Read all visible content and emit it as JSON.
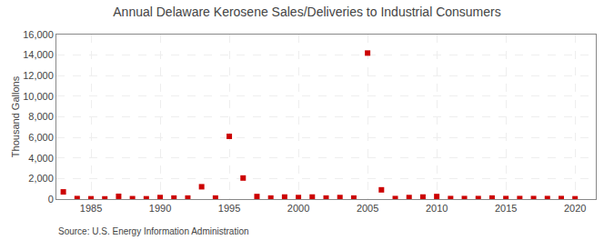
{
  "chart_data": {
    "type": "scatter",
    "title": "Annual Delaware Kerosene Sales/Deliveries to Industrial Consumers",
    "ylabel": "Thousand Gallons",
    "annotations": [
      "Source: U.S. Energy Information Administration"
    ],
    "x": [
      1983,
      1984,
      1985,
      1986,
      1987,
      1988,
      1989,
      1990,
      1991,
      1992,
      1993,
      1994,
      1995,
      1996,
      1997,
      1998,
      1999,
      2000,
      2001,
      2002,
      2003,
      2004,
      2005,
      2006,
      2007,
      2008,
      2009,
      2010,
      2011,
      2012,
      2013,
      2014,
      2015,
      2016,
      2017,
      2018,
      2019,
      2020
    ],
    "values": [
      700,
      50,
      30,
      20,
      270,
      40,
      30,
      150,
      100,
      100,
      1200,
      100,
      6100,
      2050,
      250,
      100,
      200,
      150,
      200,
      100,
      150,
      100,
      14200,
      900,
      50,
      150,
      200,
      250,
      50,
      50,
      50,
      100,
      50,
      50,
      50,
      50,
      50,
      30
    ],
    "color": "#cc0000",
    "marker": "square",
    "xlim": [
      1982.5,
      2021.5
    ],
    "xticks": [
      1985,
      1990,
      1995,
      2000,
      2005,
      2010,
      2015,
      2020
    ],
    "ylim": [
      0,
      16000
    ],
    "yticks": [
      0,
      {
        "value": 2000,
        "label": "2,000"
      },
      {
        "value": 4000,
        "label": "4,000"
      },
      {
        "value": 6000,
        "label": "6,000"
      },
      {
        "value": 8000,
        "label": "8,000"
      },
      {
        "value": 10000,
        "label": "10,000"
      },
      {
        "value": 12000,
        "label": "12,000"
      },
      {
        "value": 14000,
        "label": "14,000"
      },
      {
        "value": 16000,
        "label": "16,000"
      }
    ],
    "grid": true
  }
}
